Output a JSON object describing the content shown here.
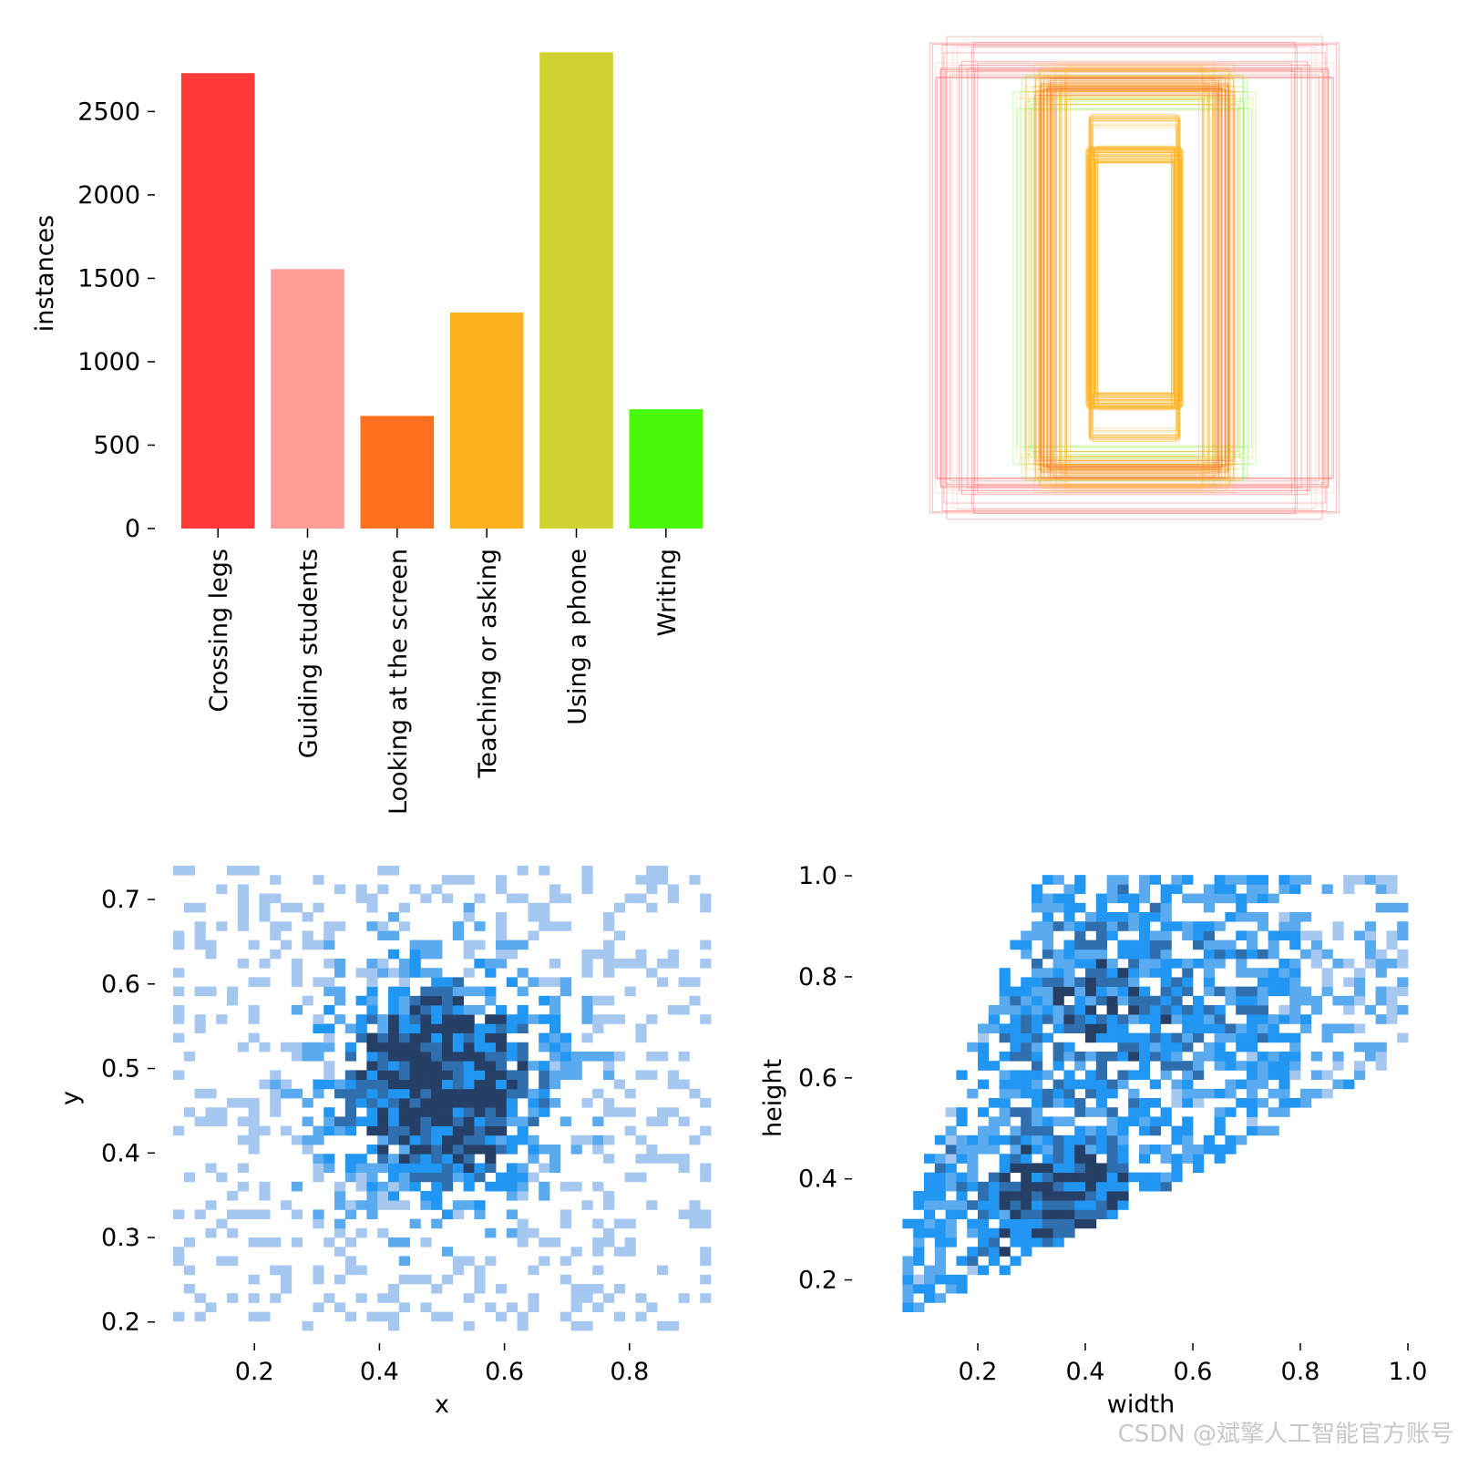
{
  "colors": {
    "bars": [
      "#ff3838",
      "#ff9d97",
      "#ff701f",
      "#ffb21d",
      "#cfd231",
      "#48f90a"
    ],
    "hist_low": "#a6c8f0",
    "hist_mid": "#2196f3",
    "hist_high": "#253f66"
  },
  "watermark": "CSDN @斌擎人工智能官方账号",
  "chart_data": [
    {
      "type": "bar",
      "title": "",
      "xlabel": "",
      "ylabel": "instances",
      "categories": [
        "Crossing legs",
        "Guiding students",
        "Looking at the screen",
        "Teaching or asking",
        "Using a phone",
        "Writing"
      ],
      "values": [
        2730,
        1555,
        675,
        1295,
        2855,
        715
      ],
      "ylim": [
        0,
        2950
      ],
      "yticks": [
        "0",
        "500",
        "1000",
        "1500",
        "2000",
        "2500"
      ],
      "grid": false
    },
    {
      "type": "boxes",
      "title": "",
      "description_visible": "overlaid box outlines centered, colored by class",
      "xlim": [
        0,
        1000
      ],
      "ylim": [
        0,
        1000
      ],
      "note_axes": "no axes drawn"
    },
    {
      "type": "heatmap",
      "title": "",
      "xlabel": "x",
      "ylabel": "y",
      "xlim": [
        0.07,
        0.93
      ],
      "ylim": [
        0.19,
        0.74
      ],
      "xticks": [
        "0.2",
        "0.4",
        "0.6",
        "0.8"
      ],
      "yticks": [
        "0.2",
        "0.3",
        "0.4",
        "0.5",
        "0.6",
        "0.7"
      ],
      "center": [
        0.5,
        0.48
      ],
      "spread": [
        0.12,
        0.09
      ],
      "bins": 50,
      "grid": false
    },
    {
      "type": "heatmap",
      "title": "",
      "xlabel": "width",
      "ylabel": "height",
      "xlim": [
        0.0,
        1.0
      ],
      "ylim": [
        0.1,
        1.02
      ],
      "xticks": [
        "0.2",
        "0.4",
        "0.6",
        "0.8",
        "1.0"
      ],
      "yticks": [
        "0.2",
        "0.4",
        "0.6",
        "0.8",
        "1.0"
      ],
      "bins": 50,
      "grid": false
    }
  ]
}
